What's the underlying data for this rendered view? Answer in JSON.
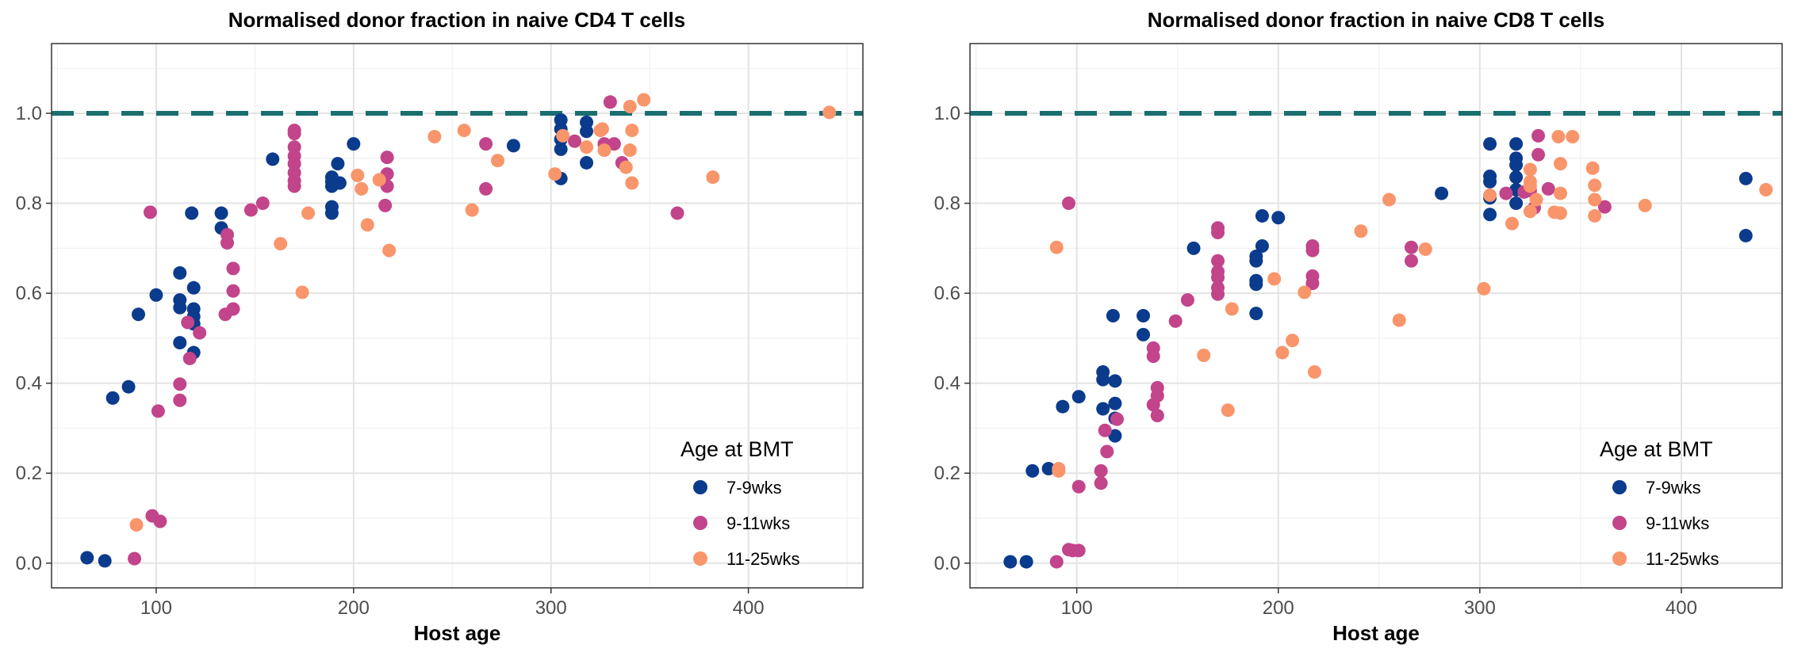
{
  "legend": {
    "title": "Age at BMT",
    "entries": [
      {
        "label": "7-9wks",
        "color": "#0b3b8c"
      },
      {
        "label": "9-11wks",
        "color": "#c2448a"
      },
      {
        "label": "11-25wks",
        "color": "#f9956b"
      }
    ]
  },
  "reference_line_color": "#1b6e6e",
  "chart_data": [
    {
      "type": "scatter",
      "title": "Normalised donor fraction in naive CD4 T cells",
      "xlabel": "Host age",
      "ylabel": "",
      "xlim": [
        47,
        458
      ],
      "ylim": [
        -0.055,
        1.155
      ],
      "xticks": [
        100,
        200,
        300,
        400
      ],
      "yticks": [
        0.0,
        0.2,
        0.4,
        0.6,
        0.8,
        1.0
      ],
      "reference_line": {
        "y": 1.0,
        "style": "dashed"
      },
      "grid": true,
      "legend_position": "bottom-right",
      "series": [
        {
          "name": "7-9wks",
          "points": [
            [
              65,
              0.012
            ],
            [
              74,
              0.005
            ],
            [
              78,
              0.367
            ],
            [
              86,
              0.392
            ],
            [
              91,
              0.553
            ],
            [
              100,
              0.596
            ],
            [
              112,
              0.645
            ],
            [
              112,
              0.585
            ],
            [
              112,
              0.568
            ],
            [
              112,
              0.49
            ],
            [
              118,
              0.778
            ],
            [
              119,
              0.612
            ],
            [
              119,
              0.565
            ],
            [
              119,
              0.548
            ],
            [
              119,
              0.532
            ],
            [
              119,
              0.468
            ],
            [
              133,
              0.778
            ],
            [
              133,
              0.745
            ],
            [
              159,
              0.898
            ],
            [
              189,
              0.858
            ],
            [
              189,
              0.848
            ],
            [
              189,
              0.838
            ],
            [
              189,
              0.792
            ],
            [
              189,
              0.778
            ],
            [
              192,
              0.888
            ],
            [
              193,
              0.845
            ],
            [
              200,
              0.932
            ],
            [
              281,
              0.928
            ],
            [
              305,
              0.985
            ],
            [
              305,
              0.965
            ],
            [
              305,
              0.942
            ],
            [
              305,
              0.92
            ],
            [
              305,
              0.855
            ],
            [
              318,
              0.98
            ],
            [
              318,
              0.96
            ],
            [
              318,
              0.89
            ]
          ]
        },
        {
          "name": "9-11wks",
          "points": [
            [
              89,
              0.01
            ],
            [
              97,
              0.78
            ],
            [
              98,
              0.105
            ],
            [
              101,
              0.338
            ],
            [
              102,
              0.093
            ],
            [
              112,
              0.398
            ],
            [
              112,
              0.362
            ],
            [
              116,
              0.535
            ],
            [
              117,
              0.455
            ],
            [
              122,
              0.512
            ],
            [
              135,
              0.553
            ],
            [
              136,
              0.73
            ],
            [
              136,
              0.712
            ],
            [
              139,
              0.565
            ],
            [
              139,
              0.655
            ],
            [
              139,
              0.605
            ],
            [
              148,
              0.785
            ],
            [
              154,
              0.8
            ],
            [
              170,
              0.962
            ],
            [
              170,
              0.955
            ],
            [
              170,
              0.925
            ],
            [
              170,
              0.905
            ],
            [
              170,
              0.888
            ],
            [
              170,
              0.868
            ],
            [
              170,
              0.85
            ],
            [
              170,
              0.838
            ],
            [
              217,
              0.902
            ],
            [
              217,
              0.865
            ],
            [
              217,
              0.838
            ],
            [
              216,
              0.795
            ],
            [
              267,
              0.932
            ],
            [
              267,
              0.832
            ],
            [
              312,
              0.938
            ],
            [
              327,
              0.932
            ],
            [
              330,
              1.025
            ],
            [
              332,
              0.932
            ],
            [
              336,
              0.89
            ],
            [
              364,
              0.778
            ]
          ]
        },
        {
          "name": "11-25wks",
          "points": [
            [
              90,
              0.085
            ],
            [
              163,
              0.71
            ],
            [
              174,
              0.602
            ],
            [
              177,
              0.778
            ],
            [
              202,
              0.862
            ],
            [
              204,
              0.832
            ],
            [
              207,
              0.752
            ],
            [
              213,
              0.852
            ],
            [
              218,
              0.695
            ],
            [
              241,
              0.948
            ],
            [
              256,
              0.962
            ],
            [
              260,
              0.785
            ],
            [
              273,
              0.895
            ],
            [
              302,
              0.865
            ],
            [
              306,
              0.95
            ],
            [
              318,
              0.925
            ],
            [
              325,
              0.962
            ],
            [
              326,
              0.965
            ],
            [
              327,
              0.918
            ],
            [
              338,
              0.88
            ],
            [
              340,
              0.918
            ],
            [
              340,
              1.015
            ],
            [
              341,
              0.845
            ],
            [
              341,
              0.962
            ],
            [
              347,
              1.03
            ],
            [
              382,
              0.858
            ],
            [
              441,
              1.002
            ]
          ]
        }
      ]
    },
    {
      "type": "scatter",
      "title": "Normalised donor fraction in naive CD8 T cells",
      "xlabel": "Host age",
      "ylabel": "",
      "xlim": [
        47,
        450
      ],
      "ylim": [
        -0.055,
        1.155
      ],
      "xticks": [
        100,
        200,
        300,
        400
      ],
      "yticks": [
        0.0,
        0.2,
        0.4,
        0.6,
        0.8,
        1.0
      ],
      "reference_line": {
        "y": 1.0,
        "style": "dashed"
      },
      "grid": true,
      "legend_position": "bottom-right",
      "series": [
        {
          "name": "7-9wks",
          "points": [
            [
              67,
              0.003
            ],
            [
              75,
              0.003
            ],
            [
              78,
              0.205
            ],
            [
              86,
              0.21
            ],
            [
              93,
              0.348
            ],
            [
              101,
              0.37
            ],
            [
              113,
              0.425
            ],
            [
              113,
              0.408
            ],
            [
              113,
              0.343
            ],
            [
              118,
              0.55
            ],
            [
              119,
              0.405
            ],
            [
              119,
              0.355
            ],
            [
              119,
              0.322
            ],
            [
              119,
              0.283
            ],
            [
              133,
              0.55
            ],
            [
              133,
              0.508
            ],
            [
              158,
              0.7
            ],
            [
              189,
              0.682
            ],
            [
              189,
              0.672
            ],
            [
              189,
              0.628
            ],
            [
              189,
              0.62
            ],
            [
              189,
              0.555
            ],
            [
              192,
              0.772
            ],
            [
              192,
              0.705
            ],
            [
              200,
              0.768
            ],
            [
              281,
              0.822
            ],
            [
              305,
              0.932
            ],
            [
              305,
              0.86
            ],
            [
              305,
              0.848
            ],
            [
              305,
              0.812
            ],
            [
              305,
              0.775
            ],
            [
              318,
              0.932
            ],
            [
              318,
              0.9
            ],
            [
              318,
              0.885
            ],
            [
              318,
              0.858
            ],
            [
              318,
              0.83
            ],
            [
              318,
              0.8
            ],
            [
              432,
              0.855
            ],
            [
              432,
              0.728
            ]
          ]
        },
        {
          "name": "9-11wks",
          "points": [
            [
              90,
              0.003
            ],
            [
              96,
              0.8
            ],
            [
              96,
              0.03
            ],
            [
              98,
              0.028
            ],
            [
              101,
              0.17
            ],
            [
              101,
              0.028
            ],
            [
              112,
              0.205
            ],
            [
              112,
              0.178
            ],
            [
              114,
              0.295
            ],
            [
              115,
              0.248
            ],
            [
              120,
              0.32
            ],
            [
              138,
              0.478
            ],
            [
              138,
              0.46
            ],
            [
              138,
              0.352
            ],
            [
              140,
              0.39
            ],
            [
              140,
              0.372
            ],
            [
              140,
              0.328
            ],
            [
              149,
              0.538
            ],
            [
              155,
              0.585
            ],
            [
              170,
              0.745
            ],
            [
              170,
              0.735
            ],
            [
              170,
              0.672
            ],
            [
              170,
              0.648
            ],
            [
              170,
              0.635
            ],
            [
              170,
              0.612
            ],
            [
              170,
              0.598
            ],
            [
              217,
              0.705
            ],
            [
              217,
              0.695
            ],
            [
              217,
              0.638
            ],
            [
              217,
              0.622
            ],
            [
              266,
              0.702
            ],
            [
              266,
              0.672
            ],
            [
              313,
              0.822
            ],
            [
              322,
              0.825
            ],
            [
              325,
              0.828
            ],
            [
              327,
              0.79
            ],
            [
              329,
              0.908
            ],
            [
              329,
              0.95
            ],
            [
              334,
              0.832
            ],
            [
              362,
              0.792
            ]
          ]
        },
        {
          "name": "11-25wks",
          "points": [
            [
              90,
              0.702
            ],
            [
              91,
              0.21
            ],
            [
              91,
              0.205
            ],
            [
              163,
              0.462
            ],
            [
              175,
              0.34
            ],
            [
              177,
              0.565
            ],
            [
              198,
              0.632
            ],
            [
              202,
              0.468
            ],
            [
              207,
              0.495
            ],
            [
              213,
              0.602
            ],
            [
              218,
              0.425
            ],
            [
              241,
              0.738
            ],
            [
              255,
              0.808
            ],
            [
              260,
              0.54
            ],
            [
              273,
              0.698
            ],
            [
              302,
              0.61
            ],
            [
              305,
              0.818
            ],
            [
              316,
              0.755
            ],
            [
              325,
              0.875
            ],
            [
              325,
              0.848
            ],
            [
              325,
              0.838
            ],
            [
              325,
              0.782
            ],
            [
              328,
              0.808
            ],
            [
              337,
              0.78
            ],
            [
              339,
              0.948
            ],
            [
              340,
              0.778
            ],
            [
              340,
              0.822
            ],
            [
              340,
              0.888
            ],
            [
              346,
              0.948
            ],
            [
              356,
              0.878
            ],
            [
              357,
              0.84
            ],
            [
              357,
              0.808
            ],
            [
              357,
              0.772
            ],
            [
              382,
              0.795
            ],
            [
              442,
              0.83
            ]
          ]
        }
      ]
    }
  ]
}
